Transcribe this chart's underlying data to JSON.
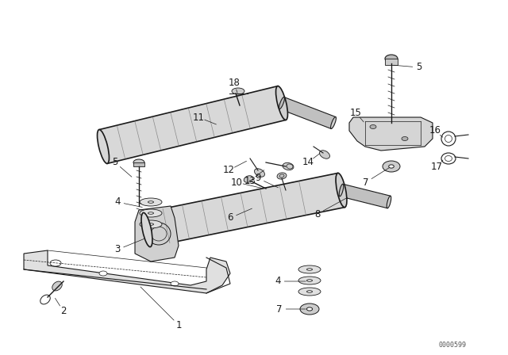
{
  "bg_color": "#ffffff",
  "line_color": "#1a1a1a",
  "fig_width": 6.4,
  "fig_height": 4.48,
  "dpi": 100,
  "watermark": "0000599"
}
